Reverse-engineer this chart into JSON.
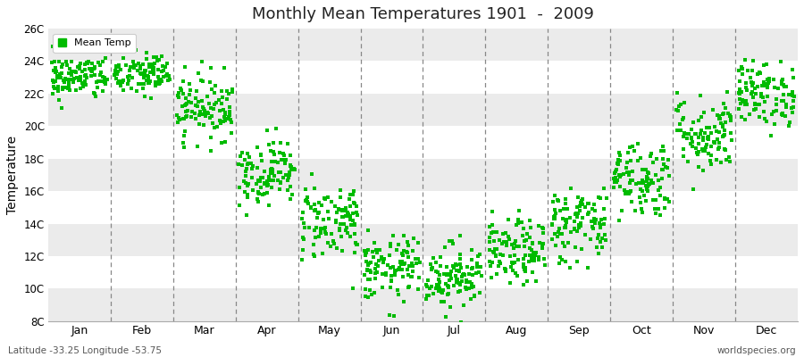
{
  "title": "Monthly Mean Temperatures 1901  -  2009",
  "ylabel": "Temperature",
  "background_color": "#ffffff",
  "plot_bg_light": "#ffffff",
  "plot_bg_dark": "#ebebeb",
  "dot_color": "#00bb00",
  "dot_size": 5,
  "ylim": [
    8,
    26
  ],
  "ytick_labels": [
    "8C",
    "10C",
    "12C",
    "14C",
    "16C",
    "18C",
    "20C",
    "22C",
    "24C",
    "26C"
  ],
  "ytick_values": [
    8,
    10,
    12,
    14,
    16,
    18,
    20,
    22,
    24,
    26
  ],
  "month_labels": [
    "Jan",
    "Feb",
    "Mar",
    "Apr",
    "May",
    "Jun",
    "Jul",
    "Aug",
    "Sep",
    "Oct",
    "Nov",
    "Dec"
  ],
  "legend_label": "Mean Temp",
  "footer_left": "Latitude -33.25 Longitude -53.75",
  "footer_right": "worldspecies.org",
  "mean_temps": [
    23.0,
    23.2,
    21.2,
    17.2,
    14.2,
    11.2,
    10.8,
    12.2,
    14.0,
    16.8,
    19.5,
    22.0
  ],
  "std_temps": [
    0.7,
    0.7,
    1.0,
    1.0,
    1.2,
    1.0,
    1.0,
    1.0,
    1.2,
    1.2,
    1.2,
    1.0
  ],
  "n_years": 109
}
